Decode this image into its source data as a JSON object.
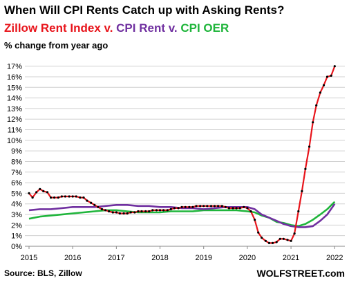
{
  "chart_data": {
    "type": "line",
    "title": "When Will CPI Rents Catch up with Asking Rents?",
    "subtitle_parts": [
      {
        "text": "Zillow Rent Index v. ",
        "color": "#e8141b"
      },
      {
        "text": "CPI Rent v. ",
        "color": "#7030a0"
      },
      {
        "text": "CPI OER",
        "color": "#1fb53b"
      }
    ],
    "ylabel": "% change from year ago",
    "ylim": [
      0,
      17.5
    ],
    "y_ticks": [
      "0%",
      "1%",
      "2%",
      "3%",
      "4%",
      "5%",
      "6%",
      "7%",
      "8%",
      "9%",
      "10%",
      "11%",
      "12%",
      "13%",
      "14%",
      "15%",
      "16%",
      "17%"
    ],
    "x_ticks": [
      "2015",
      "2016",
      "2017",
      "2018",
      "2019",
      "2020",
      "2021",
      "2022"
    ],
    "xlim": [
      2015.0,
      2022.17
    ],
    "grid": true,
    "series": [
      {
        "name": "Zillow Rent Index",
        "color": "#e8141b",
        "markers": true,
        "x": [
          2015.0,
          2015.08,
          2015.17,
          2015.25,
          2015.33,
          2015.42,
          2015.5,
          2015.58,
          2015.67,
          2015.75,
          2015.83,
          2015.92,
          2016.0,
          2016.08,
          2016.17,
          2016.25,
          2016.33,
          2016.42,
          2016.5,
          2016.58,
          2016.67,
          2016.75,
          2016.83,
          2016.92,
          2017.0,
          2017.08,
          2017.17,
          2017.25,
          2017.33,
          2017.42,
          2017.5,
          2017.58,
          2017.67,
          2017.75,
          2017.83,
          2017.92,
          2018.0,
          2018.08,
          2018.17,
          2018.25,
          2018.33,
          2018.42,
          2018.5,
          2018.58,
          2018.67,
          2018.75,
          2018.83,
          2018.92,
          2019.0,
          2019.08,
          2019.17,
          2019.25,
          2019.33,
          2019.42,
          2019.5,
          2019.58,
          2019.67,
          2019.75,
          2019.83,
          2019.92,
          2020.0,
          2020.08,
          2020.17,
          2020.25,
          2020.33,
          2020.42,
          2020.5,
          2020.58,
          2020.67,
          2020.75,
          2020.83,
          2020.92,
          2021.0,
          2021.08,
          2021.17,
          2021.25,
          2021.33,
          2021.42,
          2021.5,
          2021.58,
          2021.67,
          2021.75,
          2021.83,
          2021.92,
          2022.0
        ],
        "values": [
          5.0,
          4.6,
          5.1,
          5.4,
          5.2,
          5.1,
          4.6,
          4.6,
          4.6,
          4.7,
          4.7,
          4.7,
          4.7,
          4.7,
          4.6,
          4.6,
          4.3,
          4.1,
          3.9,
          3.7,
          3.5,
          3.4,
          3.3,
          3.2,
          3.2,
          3.1,
          3.1,
          3.1,
          3.2,
          3.2,
          3.3,
          3.3,
          3.3,
          3.3,
          3.4,
          3.4,
          3.4,
          3.4,
          3.4,
          3.5,
          3.6,
          3.6,
          3.7,
          3.7,
          3.7,
          3.7,
          3.8,
          3.8,
          3.8,
          3.8,
          3.8,
          3.8,
          3.8,
          3.8,
          3.7,
          3.6,
          3.6,
          3.6,
          3.6,
          3.7,
          3.6,
          3.3,
          2.5,
          1.3,
          0.8,
          0.5,
          0.3,
          0.3,
          0.4,
          0.7,
          0.7,
          0.6,
          0.5,
          1.2,
          3.3,
          5.2,
          7.3,
          9.4,
          11.7,
          13.3,
          14.5,
          15.2,
          16.0,
          16.1,
          17.0
        ]
      },
      {
        "name": "CPI Rent",
        "color": "#7030a0",
        "markers": false,
        "x": [
          2015.0,
          2015.25,
          2015.5,
          2015.75,
          2016.0,
          2016.25,
          2016.5,
          2016.75,
          2017.0,
          2017.25,
          2017.5,
          2017.75,
          2018.0,
          2018.25,
          2018.5,
          2018.75,
          2019.0,
          2019.25,
          2019.5,
          2019.75,
          2020.0,
          2020.17,
          2020.33,
          2020.5,
          2020.67,
          2020.83,
          2021.0,
          2021.17,
          2021.33,
          2021.5,
          2021.67,
          2021.83,
          2022.0
        ],
        "values": [
          3.4,
          3.5,
          3.5,
          3.6,
          3.7,
          3.7,
          3.7,
          3.8,
          3.9,
          3.9,
          3.8,
          3.8,
          3.7,
          3.7,
          3.6,
          3.6,
          3.5,
          3.6,
          3.7,
          3.7,
          3.7,
          3.5,
          3.0,
          2.7,
          2.4,
          2.1,
          1.9,
          1.8,
          1.8,
          1.9,
          2.4,
          3.0,
          4.0
        ]
      },
      {
        "name": "CPI OER",
        "color": "#1fb53b",
        "markers": false,
        "x": [
          2015.0,
          2015.25,
          2015.5,
          2015.75,
          2016.0,
          2016.25,
          2016.5,
          2016.75,
          2017.0,
          2017.25,
          2017.5,
          2017.75,
          2018.0,
          2018.25,
          2018.5,
          2018.75,
          2019.0,
          2019.25,
          2019.5,
          2019.75,
          2020.0,
          2020.17,
          2020.33,
          2020.5,
          2020.67,
          2020.83,
          2021.0,
          2021.17,
          2021.33,
          2021.5,
          2021.67,
          2021.83,
          2022.0
        ],
        "values": [
          2.6,
          2.8,
          2.9,
          3.0,
          3.1,
          3.2,
          3.3,
          3.4,
          3.4,
          3.3,
          3.2,
          3.2,
          3.2,
          3.3,
          3.3,
          3.3,
          3.4,
          3.4,
          3.4,
          3.4,
          3.3,
          3.2,
          2.9,
          2.7,
          2.3,
          2.2,
          2.0,
          1.9,
          2.1,
          2.5,
          3.0,
          3.5,
          4.2
        ]
      }
    ]
  },
  "footer": {
    "source": "Source: BLS, Zillow",
    "brand": "WOLFSTREET.com"
  }
}
